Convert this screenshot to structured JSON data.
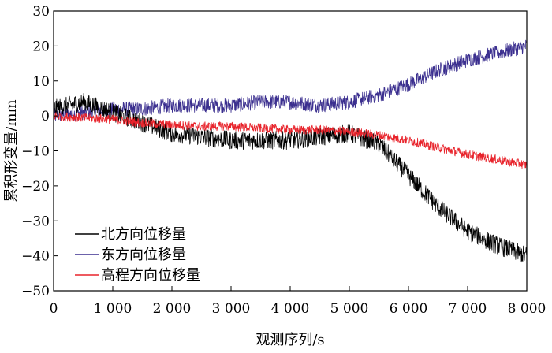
{
  "chart_data": {
    "type": "line",
    "title": "",
    "xlabel": "观测序列/s",
    "ylabel": "累积形变量/mm",
    "xlim": [
      0,
      8000
    ],
    "ylim": [
      -50,
      30
    ],
    "xticks": [
      0,
      1000,
      2000,
      3000,
      4000,
      5000,
      6000,
      7000,
      8000
    ],
    "xtick_labels": [
      "0",
      "1 000",
      "2 000",
      "3 000",
      "4 000",
      "5 000",
      "6 000",
      "7 000",
      "8 000"
    ],
    "yticks": [
      30,
      20,
      10,
      0,
      -10,
      -20,
      -30,
      -40,
      -50
    ],
    "ytick_labels": [
      "30",
      "20",
      "10",
      "0",
      "−10",
      "−20",
      "−30",
      "−40",
      "−50"
    ],
    "legend_position": "bottom-left",
    "grid": false,
    "series": [
      {
        "name": "北方向位移量",
        "color": "#000000",
        "x": [
          0,
          500,
          1000,
          1500,
          2000,
          2500,
          3000,
          3500,
          4000,
          4500,
          5000,
          5500,
          6000,
          6500,
          7000,
          7500,
          8000
        ],
        "y": [
          2,
          4,
          1,
          -2,
          -5,
          -6,
          -7,
          -7,
          -7,
          -6,
          -5,
          -8,
          -17,
          -26,
          -33,
          -37,
          -40
        ],
        "noise": 2.6
      },
      {
        "name": "东方向位移量",
        "color": "#3b2f8f",
        "x": [
          0,
          500,
          1000,
          1500,
          2000,
          2500,
          3000,
          3500,
          4000,
          4500,
          5000,
          5500,
          6000,
          6500,
          7000,
          7500,
          8000
        ],
        "y": [
          0,
          1,
          2,
          2,
          3,
          3,
          3,
          4,
          4,
          3,
          4,
          6,
          9,
          13,
          16,
          18,
          20
        ],
        "noise": 2.1
      },
      {
        "name": "高程方向位移量",
        "color": "#e8232b",
        "x": [
          0,
          500,
          1000,
          1500,
          2000,
          2500,
          3000,
          3500,
          4000,
          4500,
          5000,
          5500,
          6000,
          6500,
          7000,
          7500,
          8000
        ],
        "y": [
          0,
          -0.5,
          -1,
          -2,
          -2.5,
          -3,
          -3,
          -3.5,
          -4,
          -4,
          -4.5,
          -5.5,
          -7,
          -9,
          -11,
          -12.5,
          -14
        ],
        "noise": 1.3
      }
    ]
  }
}
